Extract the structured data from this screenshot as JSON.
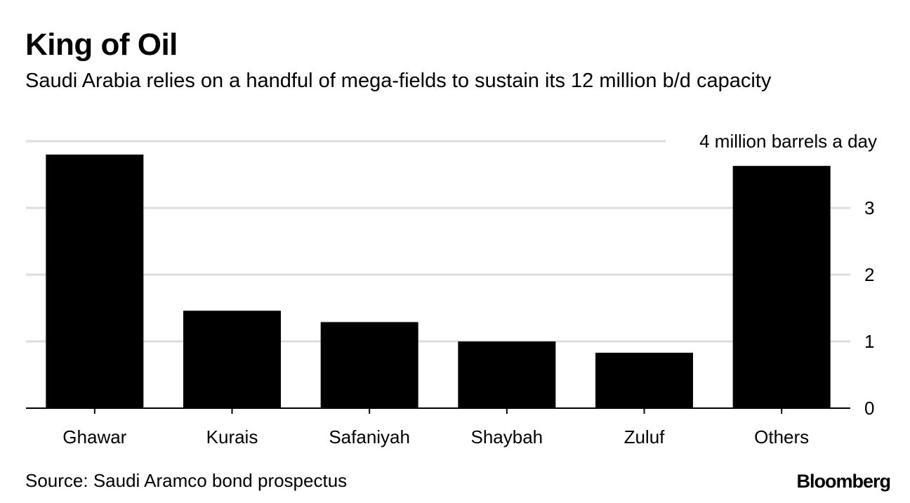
{
  "header": {
    "title": "King of Oil",
    "subtitle": "Saudi Arabia relies on a handful of mega-fields to sustain its 12 million b/d capacity"
  },
  "footer": {
    "source": "Source: Saudi Aramco bond prospectus",
    "logo": "Bloomberg"
  },
  "chart_data": {
    "type": "bar",
    "title": "King of Oil",
    "subtitle": "Saudi Arabia relies on a handful of mega-fields to sustain its 12 million b/d capacity",
    "categories": [
      "Ghawar",
      "Kurais",
      "Safaniyah",
      "Shaybah",
      "Zuluf",
      "Others"
    ],
    "values": [
      3.8,
      1.46,
      1.29,
      1.0,
      0.83,
      3.63
    ],
    "ylim": [
      0,
      4
    ],
    "yticks": [
      {
        "value": 0,
        "label": "0"
      },
      {
        "value": 1,
        "label": "1"
      },
      {
        "value": 2,
        "label": "2"
      },
      {
        "value": 3,
        "label": "3"
      },
      {
        "value": 4,
        "label": "4 million barrels a day"
      }
    ],
    "xlabel": "",
    "ylabel": "",
    "grid": true,
    "axis_side": "right",
    "bar_color": "#000000",
    "grid_color": "#dddddd"
  }
}
